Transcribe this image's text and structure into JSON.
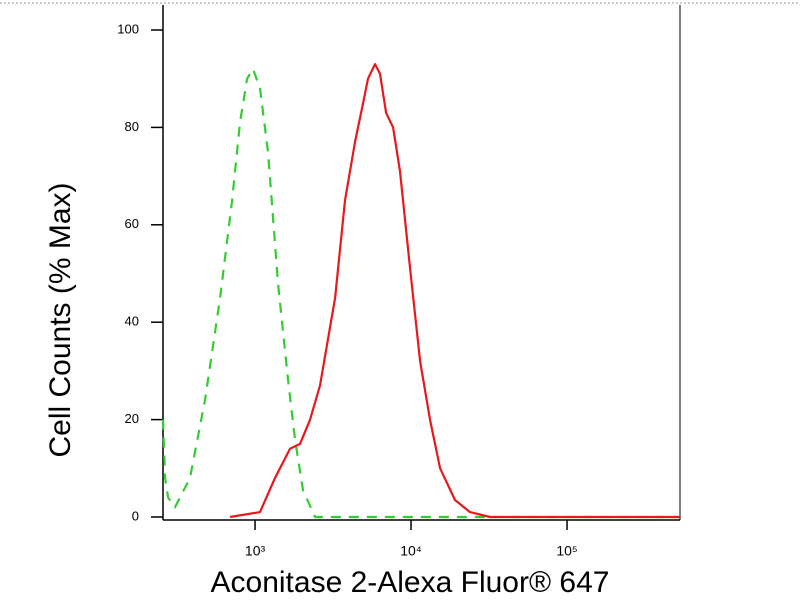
{
  "chart_data": {
    "type": "line",
    "xlabel": "Aconitase 2-Alexa Fluor® 647",
    "ylabel": "Cell Counts (% Max)",
    "xscale": "log",
    "xlim": [
      257,
      530000
    ],
    "ylim": [
      0,
      100
    ],
    "xticks": [
      {
        "value": 1000,
        "label": "10³"
      },
      {
        "value": 10000,
        "label": "10⁴"
      },
      {
        "value": 100000,
        "label": "10⁵"
      }
    ],
    "yticks": [
      0,
      20,
      40,
      60,
      80,
      100
    ],
    "series": [
      {
        "color": "#33cc33",
        "dash": true,
        "x": [
          257,
          265,
          277,
          307,
          383,
          478,
          597,
          713,
          801,
          889,
          970,
          1076,
          1211,
          1403,
          1628,
          1804,
          2031,
          2426,
          530000
        ],
        "values": [
          20,
          8,
          4,
          2,
          8,
          24,
          45,
          65,
          81,
          90,
          92,
          88,
          75,
          48,
          28,
          16,
          5.5,
          0,
          0
        ]
      },
      {
        "color": "#e8191c",
        "dash": false,
        "x": [
          692,
          1076,
          1343,
          1675,
          1943,
          2253,
          2610,
          3258,
          3775,
          4375,
          4853,
          5300,
          5879,
          6325,
          6918,
          7674,
          8497,
          9859,
          11430,
          13240,
          15350,
          19150,
          23880,
          32070,
          530000
        ],
        "values": [
          0,
          1,
          8,
          14,
          15,
          20,
          27,
          45,
          65,
          77,
          84,
          90,
          93,
          91,
          83,
          80,
          71,
          51,
          32,
          20,
          10,
          3.5,
          1,
          0,
          0
        ]
      }
    ]
  }
}
